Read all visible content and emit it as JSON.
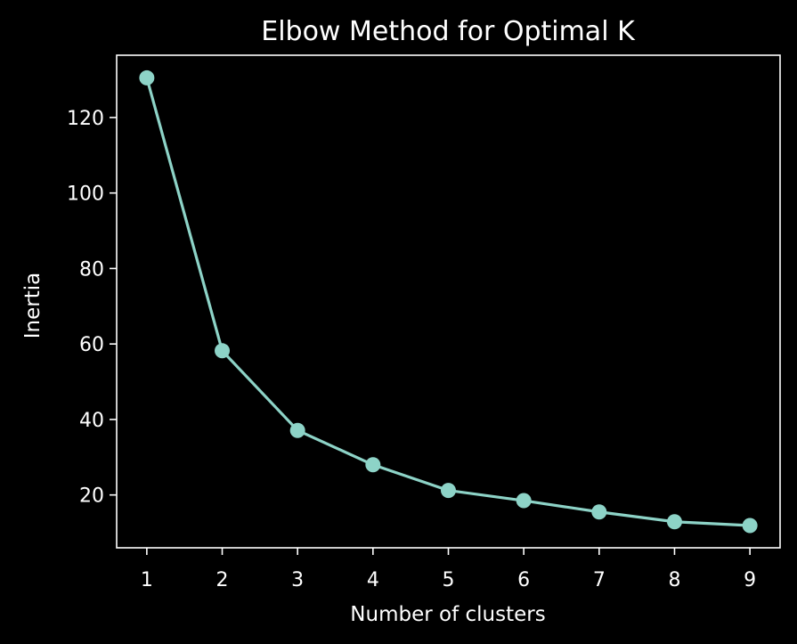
{
  "colors": {
    "background": "#000000",
    "foreground": "#ffffff",
    "series": "#8dd3c7"
  },
  "chart_data": {
    "type": "line",
    "title": "Elbow Method for Optimal K",
    "xlabel": "Number of clusters",
    "ylabel": "Inertia",
    "x": [
      1,
      2,
      3,
      4,
      5,
      6,
      7,
      8,
      9
    ],
    "series": [
      {
        "values": [
          130.5,
          58.2,
          37.1,
          28.0,
          21.2,
          18.5,
          15.5,
          12.9,
          11.9
        ],
        "marker": "circle"
      }
    ],
    "xticks": [
      "1",
      "2",
      "3",
      "4",
      "5",
      "6",
      "7",
      "8",
      "9"
    ],
    "yticks": [
      "20",
      "40",
      "60",
      "80",
      "100",
      "120"
    ],
    "xlim": [
      0.6,
      9.4
    ],
    "ylim": [
      6.0,
      136.5
    ],
    "grid": false,
    "legend": "none"
  }
}
